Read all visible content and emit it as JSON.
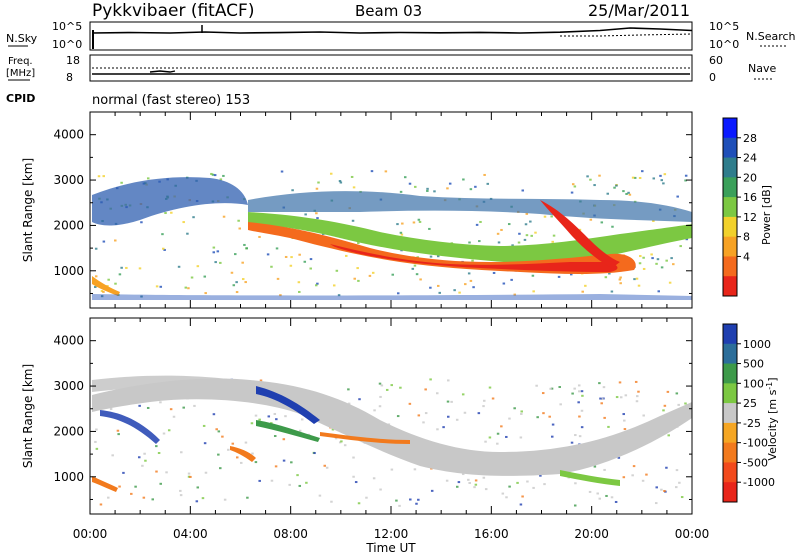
{
  "header": {
    "radar": "Pykkvibaer (fitACF)",
    "beam": "Beam 03",
    "date": "25/Mar/2011"
  },
  "nsky_panel": {
    "left_label": "N.Sky",
    "right_label": "N.Search",
    "left_ticks": [
      "10^5",
      "10^0"
    ],
    "right_ticks": [
      "10^5",
      "10^0"
    ]
  },
  "freq_panel": {
    "left_label_1": "Freq.",
    "left_label_2": "[MHz]",
    "right_label": "Nave",
    "left_ticks": [
      "18",
      "8"
    ],
    "right_ticks": [
      "60",
      "0"
    ]
  },
  "cpid": {
    "label": "CPID",
    "value": "normal (fast stereo) 153"
  },
  "chart_data": [
    {
      "type": "heatmap",
      "name": "power",
      "ylabel": "Slant Range [km]",
      "yticks": [
        "4000",
        "3000",
        "2000",
        "1000"
      ],
      "ylim": [
        180,
        4500
      ],
      "xlim": [
        0,
        24
      ],
      "colorbar": {
        "label": "Power [dB]",
        "ticks": [
          "28",
          "24",
          "20",
          "16",
          "12",
          "8",
          "4"
        ],
        "colors": [
          "#0a1aff",
          "#1f4fb8",
          "#2f7d8c",
          "#3aa05a",
          "#7cc842",
          "#f2d12b",
          "#f7a224",
          "#f46a1d",
          "#e8251a"
        ]
      }
    },
    {
      "type": "heatmap",
      "name": "velocity",
      "ylabel": "Slant Range [km]",
      "yticks": [
        "4000",
        "3000",
        "2000",
        "1000"
      ],
      "ylim": [
        180,
        4500
      ],
      "xlim": [
        0,
        24
      ],
      "xticks": [
        "00:00",
        "04:00",
        "08:00",
        "12:00",
        "16:00",
        "20:00",
        "00:00"
      ],
      "xlabel": "Time UT",
      "colorbar": {
        "label": "Velocity [m s",
        "label_sup": "-1",
        "label_end": "]",
        "ticks": [
          "1000",
          "500",
          "100",
          "25",
          "-25",
          "-100",
          "-500",
          "-1000"
        ],
        "colors": [
          "#1f3fb0",
          "#2c6e9a",
          "#3d9a4a",
          "#7cc842",
          "#c8c8c8",
          "#f5a623",
          "#f27a1d",
          "#f24a1c",
          "#e8251a"
        ]
      }
    }
  ]
}
